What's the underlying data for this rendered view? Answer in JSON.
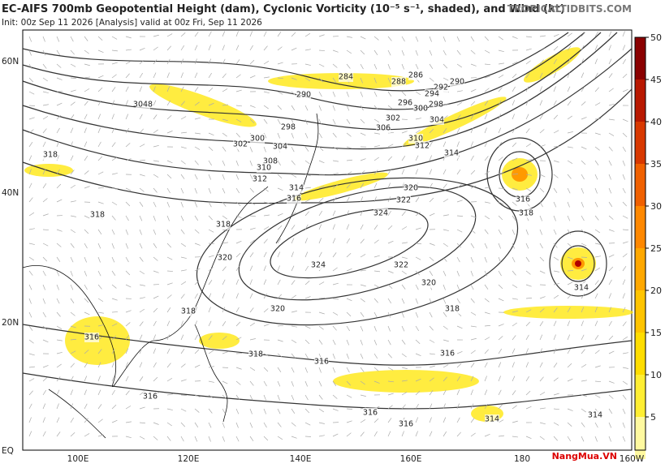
{
  "header": {
    "title": "EC-AIFS 700mb Geopotential Height (dam), Cyclonic Vorticity (10⁻⁵ s⁻¹, shaded), and Wind (kt)",
    "subtitle": "Init: 00z Sep 11 2026   [Analysis]   valid at 00z Fri, Sep 11 2026",
    "source": "TROPICALTIDBITS.COM"
  },
  "latitude_labels": [
    "60N",
    "40N",
    "20N",
    "EQ"
  ],
  "longitude_labels": [
    "100E",
    "120E",
    "140E",
    "160E",
    "180",
    "160W"
  ],
  "colorbar": {
    "ticks": [
      5,
      10,
      15,
      20,
      25,
      30,
      35,
      40,
      45,
      50
    ]
  },
  "contour_labels": [
    "284",
    "288",
    "286",
    "290",
    "292",
    "294",
    "296",
    "298",
    "300",
    "302",
    "304",
    "306",
    "310",
    "312",
    "314",
    "290",
    "298",
    "300",
    "302",
    "304",
    "308",
    "310",
    "312",
    "314",
    "316",
    "3048",
    "318",
    "318",
    "318",
    "320",
    "320",
    "322",
    "324",
    "324",
    "322",
    "320",
    "320",
    "318",
    "318",
    "316",
    "318",
    "316",
    "316",
    "316",
    "316",
    "316",
    "314",
    "314",
    "316",
    "318",
    "314"
  ],
  "watermark": "NangMua.VN"
}
